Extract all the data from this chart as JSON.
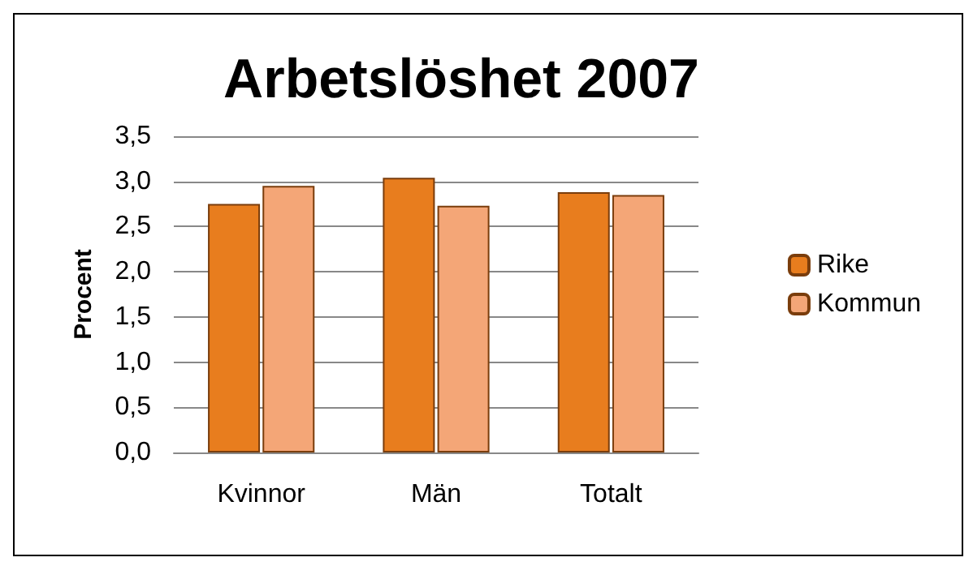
{
  "chart_data": {
    "type": "bar",
    "title": "Arbetslöshet 2007",
    "ylabel": "Procent",
    "categories": [
      "Kvinnor",
      "Män",
      "Totalt"
    ],
    "series": [
      {
        "name": "Rike",
        "color": "#e87d1e",
        "values": [
          2.75,
          3.04,
          2.88
        ]
      },
      {
        "name": "Kommun",
        "color": "#f4a677",
        "values": [
          2.95,
          2.73,
          2.85
        ]
      }
    ],
    "ylim": [
      0,
      3.5
    ],
    "yticks": [
      {
        "value": 0,
        "label": "0,0"
      },
      {
        "value": 0.5,
        "label": "0,5"
      },
      {
        "value": 1,
        "label": "1,0"
      },
      {
        "value": 1.5,
        "label": "1,5"
      },
      {
        "value": 2,
        "label": "2,0"
      },
      {
        "value": 2.5,
        "label": "2,5"
      },
      {
        "value": 3,
        "label": "3,0"
      },
      {
        "value": 3.5,
        "label": "3,5"
      }
    ],
    "grid": "y",
    "legend": "right"
  }
}
